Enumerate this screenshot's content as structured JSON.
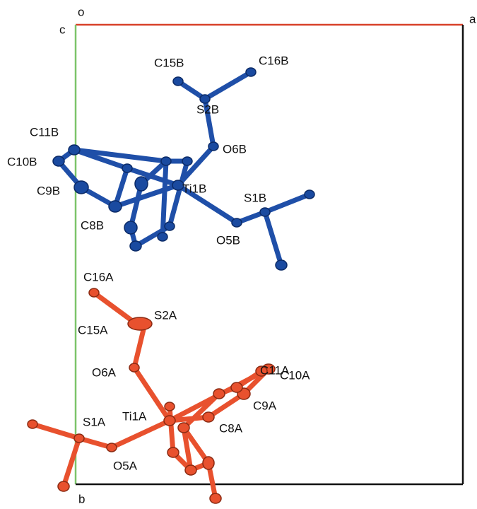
{
  "axes": {
    "origin": "o",
    "a": "a",
    "b": "b",
    "c": "c"
  },
  "molecule_b": {
    "labels": [
      "C15B",
      "C16B",
      "S2B",
      "O6B",
      "C11B",
      "C10B",
      "Ti1B",
      "S1B",
      "C9B",
      "C8B",
      "O5B"
    ]
  },
  "molecule_a": {
    "labels": [
      "C16A",
      "S2A",
      "C15A",
      "C11A",
      "C10A",
      "O6A",
      "C9A",
      "Ti1A",
      "S1A",
      "C8A",
      "O5A"
    ]
  }
}
